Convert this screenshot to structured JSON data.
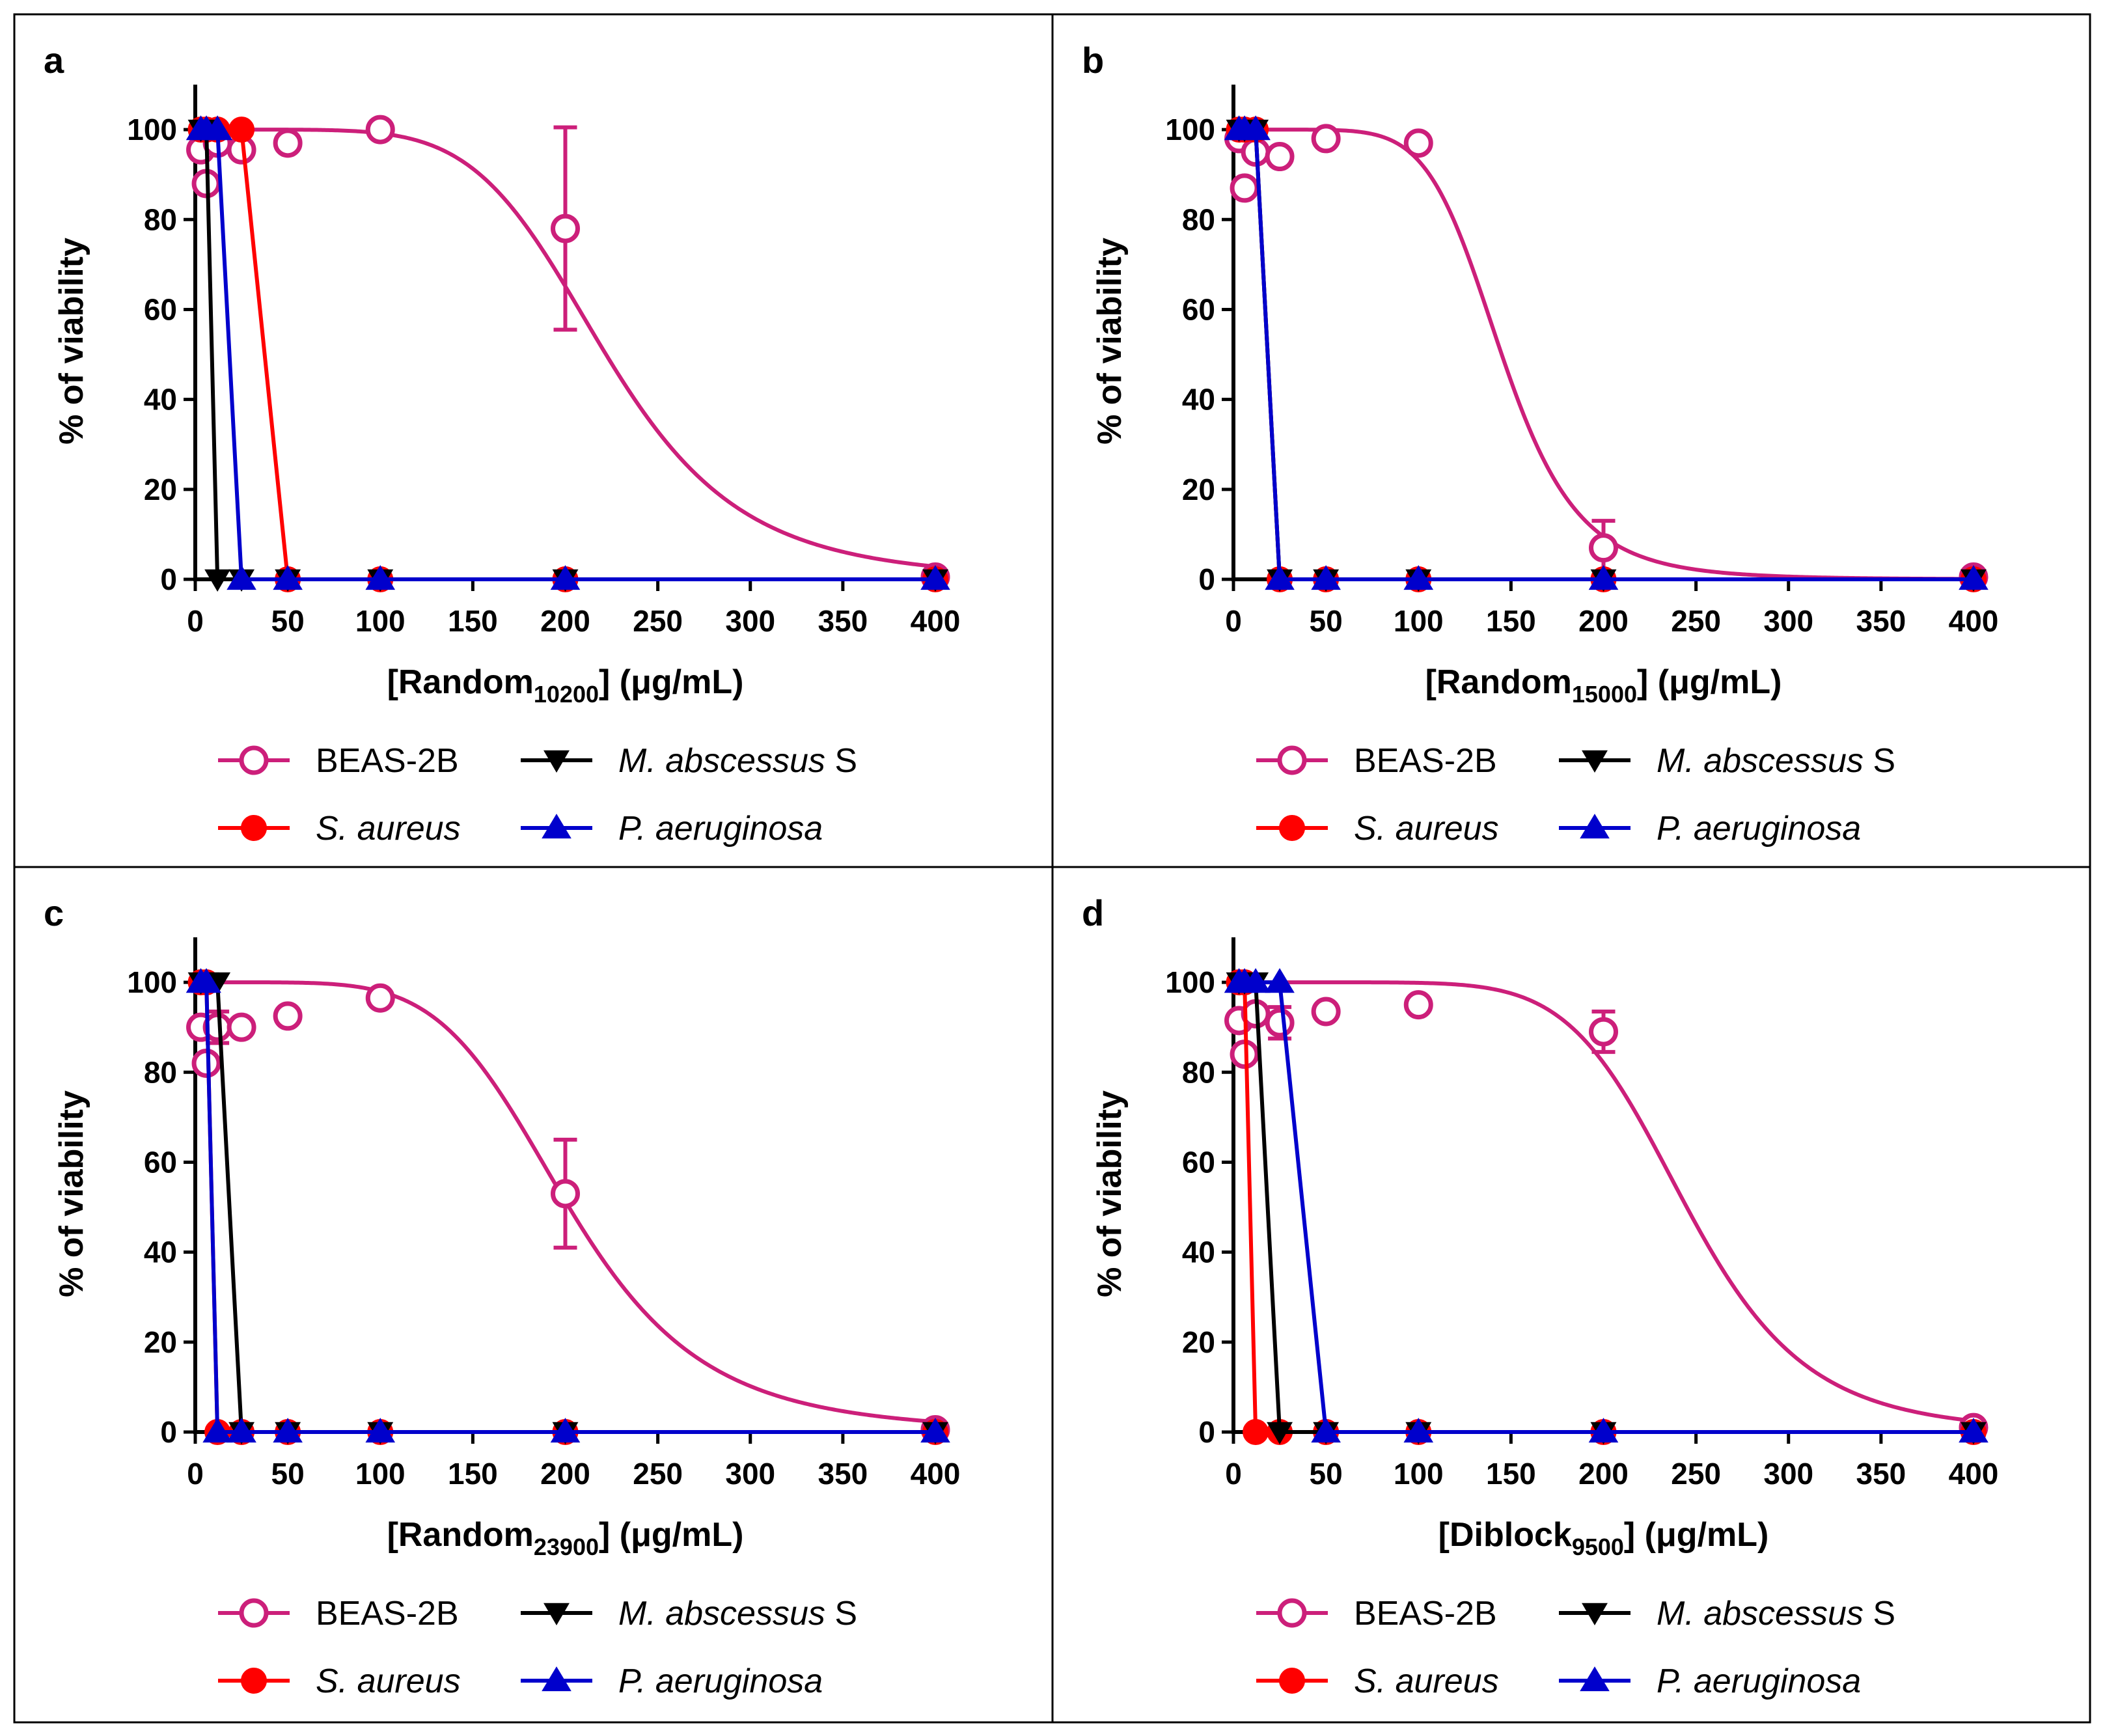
{
  "colors": {
    "beas": "#cc1f7a",
    "mabs": "#000000",
    "saureus": "#ff0000",
    "paeru": "#0000cc"
  },
  "legend": {
    "beas": "BEAS-2B",
    "mabs_name": "M. abscessus",
    "mabs_suffix": " S",
    "saureus": "S. aureus",
    "paeru": "P. aeruginosa"
  },
  "chart_data": [
    {
      "type": "line",
      "panel": "a",
      "ylabel": "% of viability",
      "xlabel_prefix": "[Random",
      "xlabel_sub": "10200",
      "xlabel_suffix": "] (μg/mL)",
      "xlim": [
        0,
        400
      ],
      "ylim": [
        0,
        110
      ],
      "x_ticks": [
        0,
        50,
        100,
        150,
        200,
        250,
        300,
        350,
        400
      ],
      "y_ticks": [
        0,
        20,
        40,
        60,
        80,
        100
      ],
      "series": [
        {
          "name": "BEAS-2B",
          "key": "beas",
          "marker": "open-circle",
          "x": [
            3,
            6,
            12,
            25,
            50,
            100,
            200,
            400
          ],
          "y": [
            95.5,
            88,
            97,
            95.5,
            97,
            100,
            78,
            0.5
          ],
          "err": [
            0,
            0,
            0,
            0,
            0,
            0,
            22.5,
            0
          ],
          "fit": {
            "top": 100,
            "bottom": 0,
            "ec50": 222,
            "hill": 6
          }
        },
        {
          "name": "M. abscessus S",
          "key": "mabs",
          "marker": "triangle-down",
          "x": [
            3,
            6,
            12,
            25,
            50,
            100,
            200,
            400
          ],
          "y": [
            100,
            100,
            0,
            0,
            0,
            0,
            0,
            0
          ]
        },
        {
          "name": "S. aureus",
          "key": "saureus",
          "marker": "filled-circle",
          "x": [
            3,
            6,
            12,
            25,
            50,
            100,
            200,
            400
          ],
          "y": [
            100,
            100,
            100,
            100,
            0,
            0,
            0,
            0
          ]
        },
        {
          "name": "P. aeruginosa",
          "key": "paeru",
          "marker": "triangle-up",
          "x": [
            3,
            6,
            12,
            25,
            50,
            100,
            200,
            400
          ],
          "y": [
            100,
            100,
            100,
            0,
            0,
            0,
            0,
            0
          ]
        }
      ]
    },
    {
      "type": "line",
      "panel": "b",
      "ylabel": "% of viability",
      "xlabel_prefix": "[Random",
      "xlabel_sub": "15000",
      "xlabel_suffix": "] (μg/mL)",
      "xlim": [
        0,
        400
      ],
      "ylim": [
        0,
        110
      ],
      "x_ticks": [
        0,
        50,
        100,
        150,
        200,
        250,
        300,
        350,
        400
      ],
      "y_ticks": [
        0,
        20,
        40,
        60,
        80,
        100
      ],
      "series": [
        {
          "name": "BEAS-2B",
          "key": "beas",
          "marker": "open-circle",
          "x": [
            3,
            6,
            12,
            25,
            50,
            100,
            200,
            400
          ],
          "y": [
            98,
            87,
            95,
            94,
            98,
            97,
            7,
            0.5
          ],
          "err": [
            0,
            0,
            0,
            0,
            0,
            0,
            6,
            0
          ],
          "fit": {
            "top": 100,
            "bottom": 0,
            "ec50": 145,
            "hill": 7
          }
        },
        {
          "name": "M. abscessus S",
          "key": "mabs",
          "marker": "triangle-down",
          "x": [
            3,
            6,
            12,
            25,
            50,
            100,
            200,
            400
          ],
          "y": [
            100,
            100,
            100,
            0,
            0,
            0,
            0,
            0
          ]
        },
        {
          "name": "S. aureus",
          "key": "saureus",
          "marker": "filled-circle",
          "x": [
            3,
            6,
            12,
            25,
            50,
            100,
            200,
            400
          ],
          "y": [
            100,
            100,
            100,
            0,
            0,
            0,
            0,
            0
          ]
        },
        {
          "name": "P. aeruginosa",
          "key": "paeru",
          "marker": "triangle-up",
          "x": [
            3,
            6,
            12,
            25,
            50,
            100,
            200,
            400
          ],
          "y": [
            100,
            100,
            100,
            0,
            0,
            0,
            0,
            0
          ]
        }
      ]
    },
    {
      "type": "line",
      "panel": "c",
      "ylabel": "% of viability",
      "xlabel_prefix": "[Random",
      "xlabel_sub": "23900",
      "xlabel_suffix": "] (μg/mL)",
      "xlim": [
        0,
        400
      ],
      "ylim": [
        0,
        110
      ],
      "x_ticks": [
        0,
        50,
        100,
        150,
        200,
        250,
        300,
        350,
        400
      ],
      "y_ticks": [
        0,
        20,
        40,
        60,
        80,
        100
      ],
      "series": [
        {
          "name": "BEAS-2B",
          "key": "beas",
          "marker": "open-circle",
          "x": [
            3,
            6,
            12,
            25,
            50,
            100,
            200,
            400
          ],
          "y": [
            90,
            82,
            90,
            90,
            92.5,
            96.5,
            53,
            0.5
          ],
          "err": [
            0,
            0,
            3.5,
            0,
            0,
            0,
            12,
            0
          ],
          "fit": {
            "top": 100,
            "bottom": 0,
            "ec50": 202,
            "hill": 5.5
          }
        },
        {
          "name": "M. abscessus S",
          "key": "mabs",
          "marker": "triangle-down",
          "x": [
            3,
            6,
            12,
            25,
            50,
            100,
            200,
            400
          ],
          "y": [
            100,
            100,
            100,
            0,
            0,
            0,
            0,
            0
          ]
        },
        {
          "name": "S. aureus",
          "key": "saureus",
          "marker": "filled-circle",
          "x": [
            3,
            6,
            12,
            25,
            50,
            100,
            200,
            400
          ],
          "y": [
            100,
            100,
            0,
            0,
            0,
            0,
            0,
            0
          ]
        },
        {
          "name": "P. aeruginosa",
          "key": "paeru",
          "marker": "triangle-up",
          "x": [
            3,
            6,
            12,
            25,
            50,
            100,
            200,
            400
          ],
          "y": [
            100,
            100,
            0,
            0,
            0,
            0,
            0,
            0
          ]
        }
      ]
    },
    {
      "type": "line",
      "panel": "d",
      "ylabel": "% of viability",
      "xlabel_prefix": "[Diblock",
      "xlabel_sub": "9500",
      "xlabel_suffix": "] (μg/mL)",
      "xlim": [
        0,
        400
      ],
      "ylim": [
        0,
        110
      ],
      "x_ticks": [
        0,
        50,
        100,
        150,
        200,
        250,
        300,
        350,
        400
      ],
      "y_ticks": [
        0,
        20,
        40,
        60,
        80,
        100
      ],
      "series": [
        {
          "name": "BEAS-2B",
          "key": "beas",
          "marker": "open-circle",
          "x": [
            3,
            6,
            12,
            25,
            50,
            100,
            200,
            400
          ],
          "y": [
            91.5,
            84,
            93,
            91,
            93.5,
            95,
            89,
            1
          ],
          "err": [
            0,
            0,
            0,
            3.5,
            0,
            0,
            4.5,
            0
          ],
          "fit": {
            "top": 100,
            "bottom": 0,
            "ec50": 245,
            "hill": 7.5
          }
        },
        {
          "name": "M. abscessus S",
          "key": "mabs",
          "marker": "triangle-down",
          "x": [
            3,
            6,
            12,
            25,
            50,
            100,
            200,
            400
          ],
          "y": [
            100,
            100,
            100,
            0,
            0,
            0,
            0,
            0
          ]
        },
        {
          "name": "S. aureus",
          "key": "saureus",
          "marker": "filled-circle",
          "x": [
            3,
            6,
            12,
            25,
            50,
            100,
            200,
            400
          ],
          "y": [
            100,
            100,
            0,
            0,
            0,
            0,
            0,
            0
          ]
        },
        {
          "name": "P. aeruginosa",
          "key": "paeru",
          "marker": "triangle-up",
          "x": [
            3,
            6,
            12,
            25,
            50,
            100,
            200,
            400
          ],
          "y": [
            100,
            100,
            100,
            100,
            0,
            0,
            0,
            0
          ]
        }
      ]
    }
  ]
}
